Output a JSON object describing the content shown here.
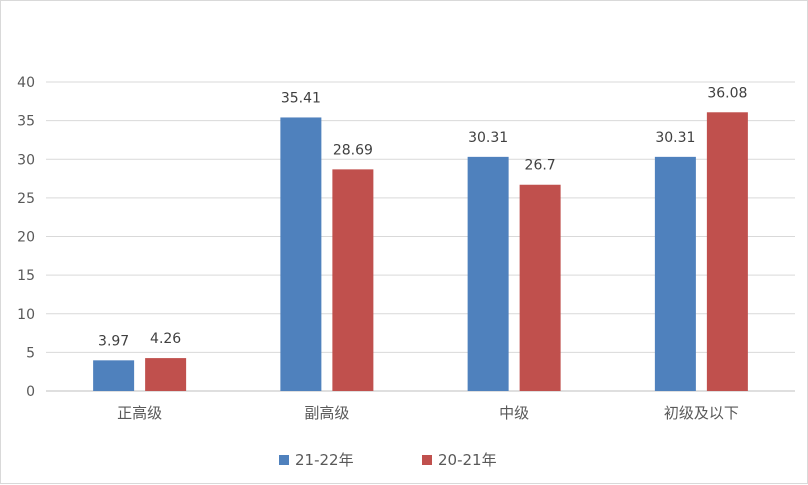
{
  "chart_data": {
    "type": "bar",
    "categories": [
      "正高级",
      "副高级",
      "中级",
      "初级及以下"
    ],
    "series": [
      {
        "name": "21-22年",
        "color": "#4f81bd",
        "values": [
          3.97,
          35.41,
          30.31,
          30.31
        ]
      },
      {
        "name": "20-21年",
        "color": "#c0504d",
        "values": [
          4.26,
          28.69,
          26.7,
          36.08
        ]
      }
    ],
    "yticks": [
      "0",
      "5",
      "10",
      "15",
      "20",
      "25",
      "30",
      "35",
      "40"
    ],
    "ylim": [
      0,
      40
    ],
    "grid": true,
    "legend_position": "bottom",
    "data_labels": [
      [
        "3.97",
        "35.41",
        "30.31",
        "30.31"
      ],
      [
        "4.26",
        "28.69",
        "26.7",
        "36.08"
      ]
    ]
  }
}
